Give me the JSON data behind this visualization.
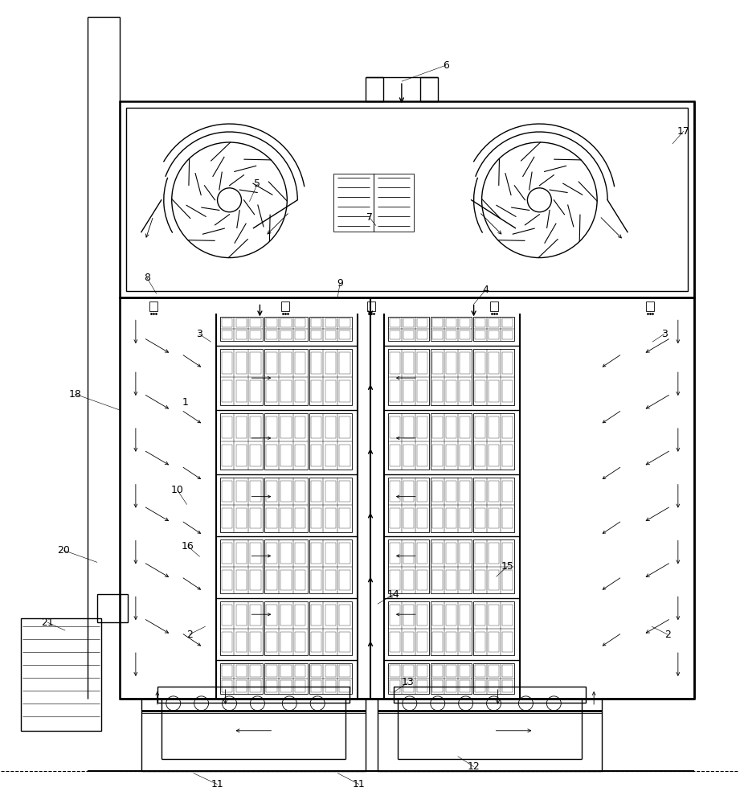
{
  "bg_color": "#ffffff",
  "lc": "#000000",
  "lw": 1.0,
  "tlw": 0.6,
  "thk": 1.8,
  "fig_w": 9.21,
  "fig_h": 10.0,
  "dpi": 100
}
